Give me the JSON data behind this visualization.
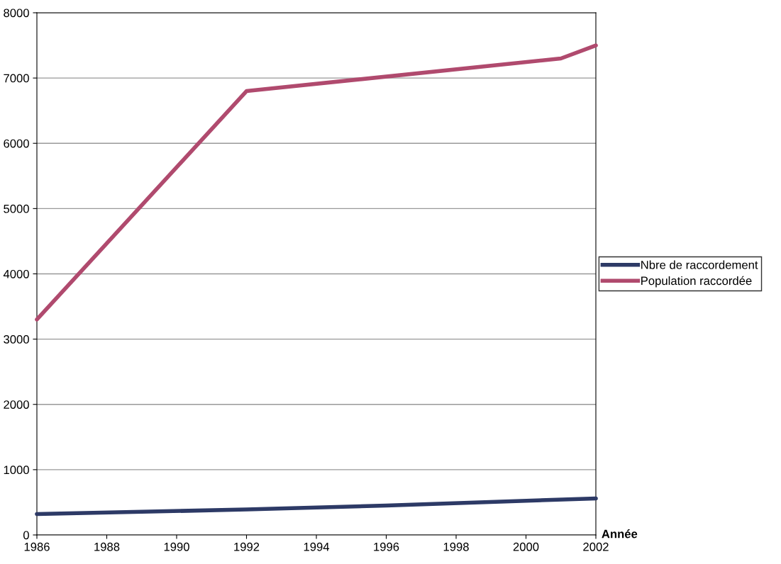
{
  "chart_data": {
    "type": "line",
    "xlabel": "Année",
    "x": [
      1986,
      1992,
      2001,
      2002
    ],
    "series": [
      {
        "name": "Nbre de raccordement",
        "color": "#2d3a66",
        "x": [
          1986,
          1992,
          1996,
          2002
        ],
        "values": [
          320,
          390,
          450,
          560
        ]
      },
      {
        "name": "Population raccordée",
        "color": "#b04a6e",
        "values": [
          3300,
          6800,
          7300,
          7500
        ]
      }
    ],
    "xlim": [
      1986,
      2002
    ],
    "xticks": [
      1986,
      1988,
      1990,
      1992,
      1994,
      1996,
      1998,
      2000,
      2002
    ],
    "ylim": [
      0,
      8000
    ],
    "yticks": [
      0,
      1000,
      2000,
      3000,
      4000,
      5000,
      6000,
      7000,
      8000
    ],
    "grid": "y",
    "legend": "right",
    "marker": "none",
    "line_style": "solid"
  }
}
